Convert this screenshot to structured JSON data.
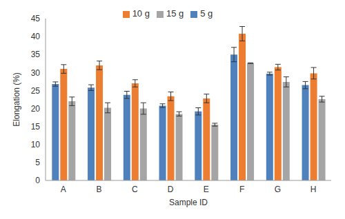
{
  "chart_data": {
    "type": "bar",
    "x_label": "Sample ID",
    "y_label": "Elongation (%)",
    "categories": [
      "A",
      "B",
      "C",
      "D",
      "E",
      "F",
      "G",
      "H"
    ],
    "series": [
      {
        "name": "5 g",
        "color": "#4f81bd",
        "values": [
          26.8,
          25.8,
          23.8,
          20.8,
          19.2,
          35.0,
          29.7,
          26.5
        ],
        "errors": [
          0.6,
          0.8,
          1.0,
          0.5,
          1.0,
          2.0,
          0.4,
          1.0
        ]
      },
      {
        "name": "10 g",
        "color": "#ed7d31",
        "values": [
          31.0,
          32.0,
          27.0,
          23.4,
          22.8,
          40.8,
          31.5,
          29.8
        ],
        "errors": [
          1.2,
          1.2,
          1.0,
          1.2,
          1.2,
          2.0,
          0.8,
          1.6
        ]
      },
      {
        "name": "15 g",
        "color": "#a5a5a5",
        "values": [
          22.0,
          20.2,
          20.0,
          18.5,
          15.5,
          32.6,
          27.4,
          22.6
        ],
        "errors": [
          1.2,
          1.4,
          1.6,
          0.6,
          0.4,
          0.1,
          1.4,
          0.8
        ]
      }
    ],
    "ylim": [
      0,
      45
    ],
    "yticks": [
      0,
      5,
      10,
      15,
      20,
      25,
      30,
      35,
      40,
      45
    ],
    "grid": false,
    "legend": "top"
  }
}
